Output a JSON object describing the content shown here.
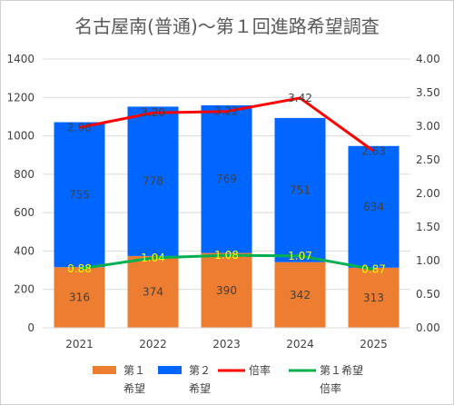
{
  "chart_data": {
    "type": "bar",
    "title": "名古屋南(普通)～第１回進路希望調査",
    "categories": [
      "2021",
      "2022",
      "2023",
      "2024",
      "2025"
    ],
    "series": [
      {
        "name": "第１希望",
        "kind": "stacked-bar",
        "axis": "left",
        "color": "#ED7D31",
        "values": [
          316,
          374,
          390,
          342,
          313
        ],
        "labels": [
          "316",
          "374",
          "390",
          "342",
          "313"
        ]
      },
      {
        "name": "第２希望",
        "kind": "stacked-bar",
        "axis": "left",
        "color": "#0066FF",
        "values": [
          755,
          778,
          769,
          751,
          634
        ],
        "labels": [
          "755",
          "778",
          "769",
          "751",
          "634"
        ]
      },
      {
        "name": "倍率",
        "kind": "line",
        "axis": "right",
        "color": "#FF0000",
        "values": [
          2.98,
          3.2,
          3.22,
          3.42,
          2.63
        ],
        "labels": [
          "2.98",
          "3.20",
          "3.22",
          "3.42",
          "2.63"
        ]
      },
      {
        "name": "第１希望倍率",
        "kind": "line",
        "axis": "right",
        "color": "#00B050",
        "values": [
          0.88,
          1.04,
          1.08,
          1.07,
          0.87
        ],
        "labels": [
          "0.88",
          "1.04",
          "1.08",
          "1.07",
          "0.87"
        ]
      }
    ],
    "y_left": {
      "lim": [
        0,
        1400
      ],
      "ticks": [
        "0",
        "200",
        "400",
        "600",
        "800",
        "1000",
        "1200",
        "1400"
      ]
    },
    "y_right": {
      "lim": [
        0,
        4.0
      ],
      "ticks": [
        "0.00",
        "0.50",
        "1.00",
        "1.50",
        "2.00",
        "2.50",
        "3.00",
        "3.50",
        "4.00"
      ]
    },
    "grid": true,
    "legend": {
      "position": "bottom",
      "items": [
        {
          "line1": "第１",
          "line2": "希望",
          "color": "#ED7D31",
          "kind": "bar"
        },
        {
          "line1": "第２",
          "line2": "希望",
          "color": "#0066FF",
          "kind": "bar"
        },
        {
          "line1": "倍率",
          "line2": "",
          "color": "#FF0000",
          "kind": "line"
        },
        {
          "line1": "第１希望",
          "line2": "倍率",
          "color": "#00B050",
          "kind": "line"
        }
      ]
    }
  }
}
